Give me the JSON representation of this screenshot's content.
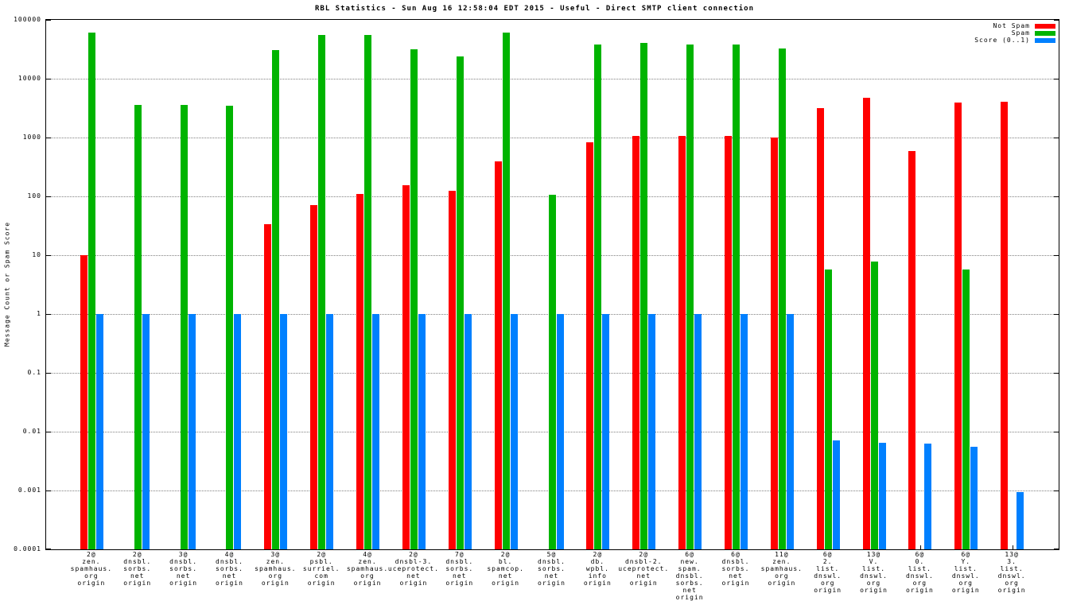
{
  "chart_data": {
    "type": "bar",
    "title": "RBL Statistics - Sun Aug 16 12:58:04 EDT 2015 - Useful - Direct SMTP client connection",
    "ylabel": "Message Count or Spam Score",
    "xlabel": "",
    "yscale": "log",
    "ylim": [
      0.0001,
      100000
    ],
    "grid": "horizontal-dotted",
    "legend_position": "top-right",
    "yticks": [
      "100000",
      "10000",
      "1000",
      "100",
      "10",
      "1",
      "0.1",
      "0.01",
      "0.001",
      "0.0001"
    ],
    "categories": [
      [
        "2@",
        "zen.",
        "spamhaus.",
        "org",
        "origin"
      ],
      [
        "2@",
        "dnsbl.",
        "sorbs.",
        "net",
        "origin"
      ],
      [
        "3@",
        "dnsbl.",
        "sorbs.",
        "net",
        "origin"
      ],
      [
        "4@",
        "dnsbl.",
        "sorbs.",
        "net",
        "origin"
      ],
      [
        "3@",
        "zen.",
        "spamhaus.",
        "org",
        "origin"
      ],
      [
        "2@",
        "psbl.",
        "surriel.",
        "com",
        "origin"
      ],
      [
        "4@",
        "zen.",
        "spamhaus.",
        "org",
        "origin"
      ],
      [
        "2@",
        "dnsbl-3.",
        "uceprotect.",
        "net",
        "origin"
      ],
      [
        "7@",
        "dnsbl.",
        "sorbs.",
        "net",
        "origin"
      ],
      [
        "2@",
        "bl.",
        "spamcop.",
        "net",
        "origin"
      ],
      [
        "5@",
        "dnsbl.",
        "sorbs.",
        "net",
        "origin"
      ],
      [
        "2@",
        "db.",
        "wpbl.",
        "info",
        "origin"
      ],
      [
        "2@",
        "dnsbl-2.",
        "uceprotect.",
        "net",
        "origin"
      ],
      [
        "6@",
        "new.",
        "spam.",
        "dnsbl.",
        "sorbs.",
        "net",
        "origin"
      ],
      [
        "6@",
        "dnsbl.",
        "sorbs.",
        "net",
        "origin"
      ],
      [
        "11@",
        "zen.",
        "spamhaus.",
        "org",
        "origin"
      ],
      [
        "6@",
        "2.",
        "list.",
        "dnswl.",
        "org",
        "origin"
      ],
      [
        "13@",
        "V.",
        "list.",
        "dnswl.",
        "org",
        "origin"
      ],
      [
        "6@",
        "0.",
        "list.",
        "dnswl.",
        "org",
        "origin"
      ],
      [
        "6@",
        "Y.",
        "list.",
        "dnswl.",
        "org",
        "origin"
      ],
      [
        "13@",
        "3.",
        "list.",
        "dnswl.",
        "org",
        "origin"
      ]
    ],
    "series": [
      {
        "name": "Not Spam",
        "key": "not-spam",
        "color": "#ff0000",
        "values": [
          10,
          null,
          null,
          null,
          34,
          72,
          110,
          155,
          125,
          390,
          null,
          840,
          1050,
          1080,
          1080,
          1000,
          3200,
          4800,
          590,
          3900,
          4000
        ]
      },
      {
        "name": "Spam",
        "key": "spam",
        "color": "#00b400",
        "values": [
          60000,
          3600,
          3600,
          3450,
          31000,
          55000,
          55000,
          32000,
          24000,
          60000,
          105,
          38000,
          40000,
          38000,
          38000,
          33000,
          5.8,
          7.8,
          null,
          5.8,
          null
        ]
      },
      {
        "name": "Score (0..1)",
        "key": "score",
        "color": "#0080ff",
        "values": [
          1,
          1,
          1,
          1,
          1,
          1,
          1,
          1,
          1,
          1,
          1,
          1,
          1,
          1,
          1,
          1,
          0.007,
          0.0065,
          0.0063,
          0.0055,
          0.00095
        ]
      }
    ]
  }
}
